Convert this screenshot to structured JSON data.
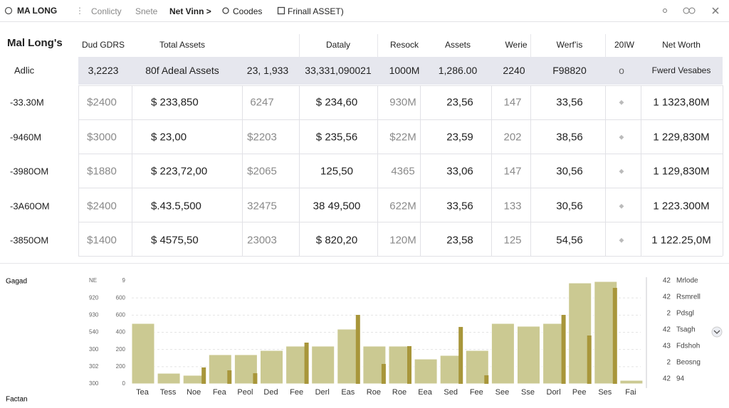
{
  "nav": {
    "brand": "MA LONG",
    "items": [
      "Conlicty",
      "Snete",
      "Net Vinn >",
      "Coodes",
      "Frinall ASSET)"
    ]
  },
  "table": {
    "title": "Mal Long's",
    "headers": [
      "Dud GDRS",
      "Total Assets",
      "Dataly",
      "Resock",
      "Assets",
      "Werie",
      "Werf’is",
      "20IW",
      "Net Worth"
    ],
    "highlight": [
      "Adlic",
      "3,2223",
      "80f  Adeal Assets",
      "23, 1,933",
      "33,331,090021",
      "1000M",
      "1,286.00",
      "2240",
      "F98820",
      "o",
      "Fwerd Vesabes"
    ],
    "rows": [
      [
        "-33.30M",
        "$2400",
        "$ 233,850",
        "6247",
        "$ 234,60",
        "930M",
        "23,56",
        "147",
        "33,56",
        "◆",
        "1   1323,80M"
      ],
      [
        "-9460M",
        "$3000",
        "$ 23,00",
        "$2203",
        "$ 235,56",
        "$22M",
        "23,59",
        "202",
        "38,56",
        "◆",
        "1   229,830M"
      ],
      [
        "-3980OM",
        "$1880",
        "$ 223,72,00",
        "$2065",
        "125,50",
        "4365",
        "33,06",
        "147",
        "30,56",
        "◆",
        "1   129,830M"
      ],
      [
        "-3A60OM",
        "$2400",
        "$.43.5,500",
        "32475",
        "38 49,500",
        "622M",
        "33,56",
        "133",
        "30,56",
        "◆",
        "1   223.300M"
      ],
      [
        "-3850OM",
        "$1400",
        "$ 4575,50",
        "23003",
        "$ 820,20",
        "120M",
        "23,58",
        "125",
        "54,56",
        "◆",
        "1   122.25,0M"
      ]
    ]
  },
  "chart": {
    "type": "bar",
    "label": "Gagad",
    "footer": "Factan",
    "left_axis": [
      "NE",
      "920",
      "930",
      "540",
      "300",
      "302",
      "300"
    ],
    "inner_axis": [
      "9",
      "600",
      "600",
      "400",
      "200",
      "200",
      "0"
    ],
    "categories": [
      "Tea",
      "Tess",
      "Noe",
      "Fea",
      "Peol",
      "Ded",
      "Fee",
      "Derl",
      "Eas",
      "Roe",
      "Roe",
      "Eea",
      "Sed",
      "Fee",
      "See",
      "Sse",
      "Dorl",
      "Pee",
      "Ses",
      "Fai"
    ],
    "ylim": [
      0,
      1000
    ],
    "light_color": "#cbc992",
    "dark_color": "#a8963a",
    "light_values": [
      586,
      103,
      83,
      283,
      283,
      324,
      366,
      366,
      531,
      366,
      366,
      241,
      276,
      324,
      586,
      559,
      586,
      979,
      993,
      34
    ],
    "dark_values": [
      null,
      null,
      159,
      131,
      103,
      null,
      400,
      null,
      669,
      193,
      366,
      null,
      552,
      83,
      null,
      null,
      669,
      469,
      931,
      null
    ],
    "legend": [
      {
        "count": 42,
        "label": "Mrlode"
      },
      {
        "count": 42,
        "label": "Rsmrell"
      },
      {
        "count": 2,
        "label": "Pdsgl"
      },
      {
        "count": 42,
        "label": "Tsagh"
      },
      {
        "count": 43,
        "label": "Fdshoh"
      },
      {
        "count": 2,
        "label": "Beosng"
      },
      {
        "count": 42,
        "label": "94"
      }
    ]
  }
}
